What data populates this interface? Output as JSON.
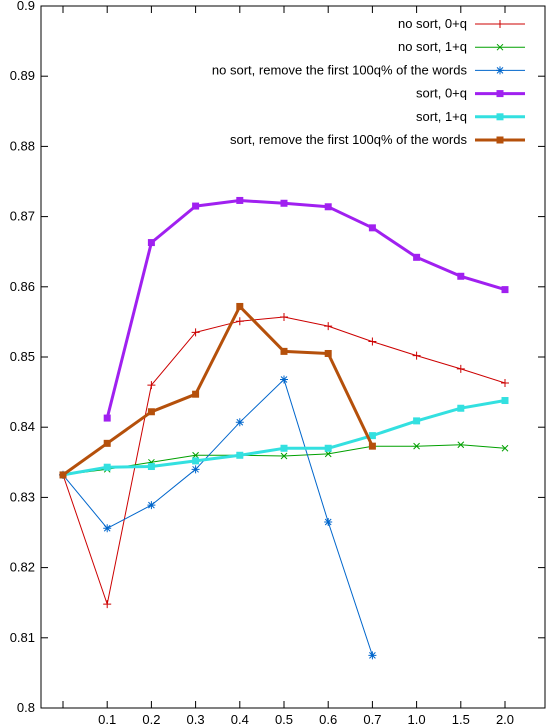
{
  "chart_data": {
    "type": "line",
    "title": "",
    "xlabel": "",
    "ylabel": "",
    "grid": false,
    "legend_position": "top-right",
    "categories": [
      "",
      "0.1",
      "0.2",
      "0.3",
      "0.4",
      "0.5",
      "0.6",
      "0.7",
      "1.0",
      "1.5",
      "2.0"
    ],
    "ylim": [
      0.8,
      0.9
    ],
    "yticks": [
      "0.8",
      "0.81",
      "0.82",
      "0.83",
      "0.84",
      "0.85",
      "0.86",
      "0.87",
      "0.88",
      "0.89",
      "0.9"
    ],
    "series": [
      {
        "name": "no sort, 0+q",
        "color": "#cc0000",
        "marker": "plus",
        "width": 1,
        "values": [
          0.8332,
          0.8148,
          0.846,
          0.8535,
          0.8551,
          0.8557,
          0.8544,
          0.8522,
          0.8502,
          0.8483,
          0.8463
        ]
      },
      {
        "name": "no sort, 1+q",
        "color": "#00a000",
        "marker": "cross",
        "width": 1,
        "values": [
          0.8332,
          0.834,
          0.835,
          0.836,
          0.836,
          0.8359,
          0.8362,
          0.8373,
          0.8373,
          0.8375,
          0.837
        ]
      },
      {
        "name": "no sort, remove the first 100q% of the words",
        "color": "#0066cc",
        "marker": "star",
        "width": 1,
        "values": [
          0.8332,
          0.8256,
          0.8289,
          0.834,
          0.8407,
          0.8468,
          0.8265,
          0.8075,
          null,
          null,
          null
        ]
      },
      {
        "name": "sort, 0+q",
        "color": "#a020f0",
        "marker": "square",
        "width": 3,
        "values": [
          null,
          0.8413,
          0.8663,
          0.8715,
          0.8723,
          0.8719,
          0.8714,
          0.8684,
          0.8642,
          0.8615,
          0.8596
        ]
      },
      {
        "name": "sort, 1+q",
        "color": "#33e0e0",
        "marker": "square",
        "width": 3,
        "values": [
          0.8332,
          0.8343,
          0.8344,
          0.8352,
          0.836,
          0.837,
          0.837,
          0.8388,
          0.8409,
          0.8427,
          0.8438
        ]
      },
      {
        "name": "sort, remove the first 100q% of the words",
        "color": "#b5500b",
        "marker": "square",
        "width": 3,
        "values": [
          0.8332,
          0.8377,
          0.8422,
          0.8447,
          0.8572,
          0.8508,
          0.8505,
          0.8373,
          null,
          null,
          null
        ]
      }
    ]
  }
}
